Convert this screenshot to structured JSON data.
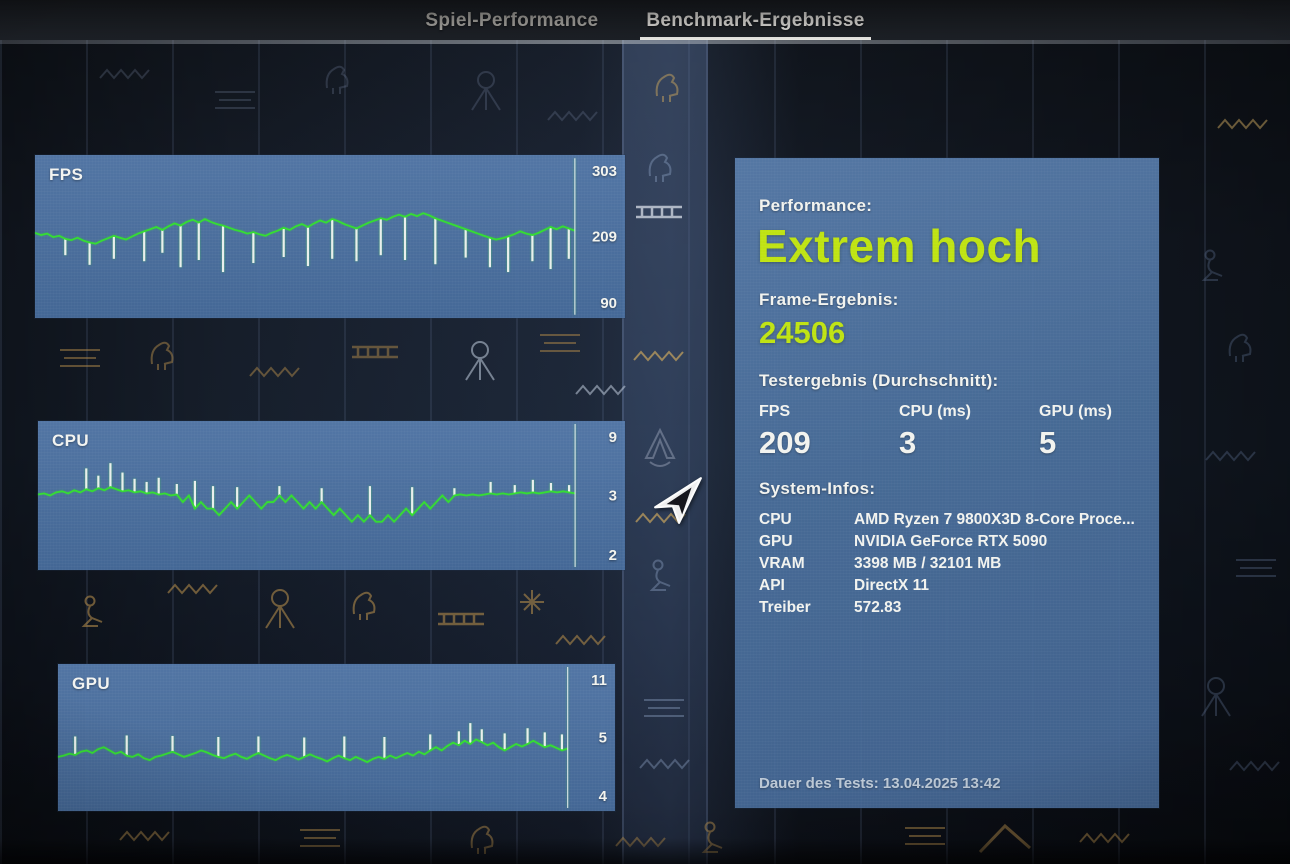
{
  "tabs": [
    {
      "label": "Spiel-Performance"
    },
    {
      "label": "Benchmark-Ergebnisse",
      "active": true
    }
  ],
  "results": {
    "performance_label": "Performance:",
    "performance_value": "Extrem hoch",
    "frame_result_label": "Frame-Ergebnis:",
    "frame_result_value": "24506",
    "test_result_label": "Testergebnis (Durchschnitt):",
    "metrics": [
      {
        "label": "FPS",
        "value": "209"
      },
      {
        "label": "CPU (ms)",
        "value": "3"
      },
      {
        "label": "GPU (ms)",
        "value": "5"
      }
    ],
    "system_info_label": "System-Infos:",
    "system_info": [
      {
        "label": "CPU",
        "value": "AMD Ryzen 7 9800X3D 8-Core Proce..."
      },
      {
        "label": "GPU",
        "value": "NVIDIA GeForce RTX 5090"
      },
      {
        "label": "VRAM",
        "value": "3398 MB / 32101 MB"
      },
      {
        "label": "API",
        "value": "DirectX 11"
      },
      {
        "label": "Treiber",
        "value": "572.83"
      }
    ],
    "test_duration": "Dauer des Tests: 13.04.2025 13:42"
  },
  "colors": {
    "accent_green": "#bfe312",
    "trace_green": "#36dd33",
    "spike_white": "#e9efec",
    "panel_blue": "#4d74a4"
  },
  "chart_data": [
    {
      "type": "line",
      "label": "FPS",
      "unit": "fps",
      "max": "303",
      "avg": "209",
      "min": "90",
      "legend": "green = FPS trace, white = dips",
      "values": [
        214,
        211,
        213,
        208,
        210,
        205,
        203,
        207,
        202,
        199,
        197,
        202,
        206,
        210,
        207,
        204,
        209,
        213,
        216,
        219,
        222,
        218,
        223,
        227,
        224,
        229,
        232,
        228,
        233,
        229,
        226,
        224,
        221,
        218,
        216,
        213,
        215,
        212,
        210,
        214,
        217,
        221,
        218,
        223,
        226,
        222,
        227,
        231,
        228,
        233,
        230,
        226,
        223,
        220,
        224,
        228,
        231,
        234,
        232,
        236,
        239,
        236,
        240,
        237,
        241,
        238,
        234,
        231,
        228,
        225,
        222,
        219,
        216,
        213,
        210,
        207,
        204,
        206,
        209,
        212,
        216,
        213,
        211,
        214,
        218,
        222,
        219,
        223,
        220,
        217
      ],
      "spikes": {
        "5": 178,
        "9": 162,
        "13": 172,
        "18": 168,
        "21": 182,
        "24": 158,
        "27": 170,
        "31": 150,
        "36": 165,
        "41": 175,
        "45": 160,
        "49": 172,
        "53": 168,
        "57": 178,
        "61": 170,
        "66": 163,
        "71": 174,
        "75": 158,
        "78": 150,
        "82": 168,
        "85": 155,
        "88": 172
      }
    },
    {
      "type": "line",
      "label": "CPU",
      "unit": "ms",
      "max": "9",
      "avg": "3",
      "min": "2",
      "legend": "green = CPU ms trace, white = spikes",
      "values": [
        3.1,
        3.2,
        3.0,
        3.3,
        3.4,
        3.2,
        3.5,
        3.3,
        3.6,
        3.4,
        3.7,
        3.5,
        3.8,
        3.6,
        3.4,
        3.5,
        3.3,
        3.4,
        3.2,
        3.3,
        3.1,
        3.2,
        3.0,
        3.1,
        2.9,
        3.0,
        2.8,
        2.9,
        2.8,
        2.8,
        2.7,
        2.8,
        2.9,
        2.8,
        2.9,
        3.0,
        2.9,
        2.8,
        2.9,
        2.9,
        3.0,
        2.9,
        3.0,
        2.9,
        2.8,
        2.9,
        2.8,
        2.9,
        2.8,
        2.7,
        2.8,
        2.7,
        2.6,
        2.7,
        2.6,
        2.7,
        2.6,
        2.6,
        2.7,
        2.6,
        2.7,
        2.8,
        2.7,
        2.8,
        2.9,
        2.8,
        2.9,
        3.0,
        2.9,
        3.0,
        3.1,
        3.0,
        3.1,
        3.0,
        3.1,
        3.2,
        3.1,
        3.2,
        3.1,
        3.2,
        3.3,
        3.2,
        3.3,
        3.2,
        3.3,
        3.4,
        3.3,
        3.4,
        3.3,
        3.2
      ],
      "spikes": {
        "8": 5.6,
        "10": 4.9,
        "12": 6.1,
        "14": 5.2,
        "16": 4.6,
        "18": 4.3,
        "20": 4.7,
        "23": 4.1,
        "26": 4.4,
        "29": 3.9,
        "33": 3.8,
        "40": 3.9,
        "47": 3.7,
        "55": 3.9,
        "62": 3.8,
        "69": 3.7,
        "75": 4.3,
        "79": 4.0,
        "82": 4.5,
        "85": 4.2,
        "88": 4.0
      }
    },
    {
      "type": "line",
      "label": "GPU",
      "unit": "ms",
      "max": "11",
      "avg": "5",
      "min": "4",
      "legend": "green = GPU ms trace, white = spikes",
      "values": [
        4.7,
        4.72,
        4.75,
        4.73,
        4.78,
        4.8,
        4.76,
        4.82,
        4.85,
        4.8,
        4.75,
        4.78,
        4.72,
        4.7,
        4.74,
        4.68,
        4.65,
        4.7,
        4.72,
        4.75,
        4.78,
        4.74,
        4.7,
        4.73,
        4.76,
        4.8,
        4.77,
        4.73,
        4.7,
        4.68,
        4.72,
        4.75,
        4.7,
        4.67,
        4.72,
        4.76,
        4.72,
        4.68,
        4.65,
        4.7,
        4.73,
        4.7,
        4.66,
        4.7,
        4.74,
        4.7,
        4.67,
        4.63,
        4.68,
        4.72,
        4.68,
        4.65,
        4.7,
        4.66,
        4.62,
        4.67,
        4.7,
        4.67,
        4.72,
        4.68,
        4.72,
        4.76,
        4.72,
        4.78,
        4.74,
        4.8,
        4.85,
        4.8,
        4.87,
        4.92,
        4.88,
        4.95,
        4.9,
        4.97,
        4.93,
        4.88,
        4.92,
        4.85,
        4.8,
        4.85,
        4.9,
        4.86,
        4.9,
        4.95,
        4.9,
        4.85,
        4.88,
        4.84,
        4.8,
        4.83
      ],
      "spikes": {
        "3": 5.1,
        "12": 5.2,
        "20": 5.15,
        "28": 5.05,
        "35": 5.1,
        "43": 5.0,
        "50": 5.1,
        "57": 5.05,
        "65": 5.3,
        "70": 5.6,
        "72": 6.4,
        "74": 5.8,
        "78": 5.4,
        "82": 5.9,
        "85": 5.5,
        "88": 5.3
      }
    }
  ]
}
